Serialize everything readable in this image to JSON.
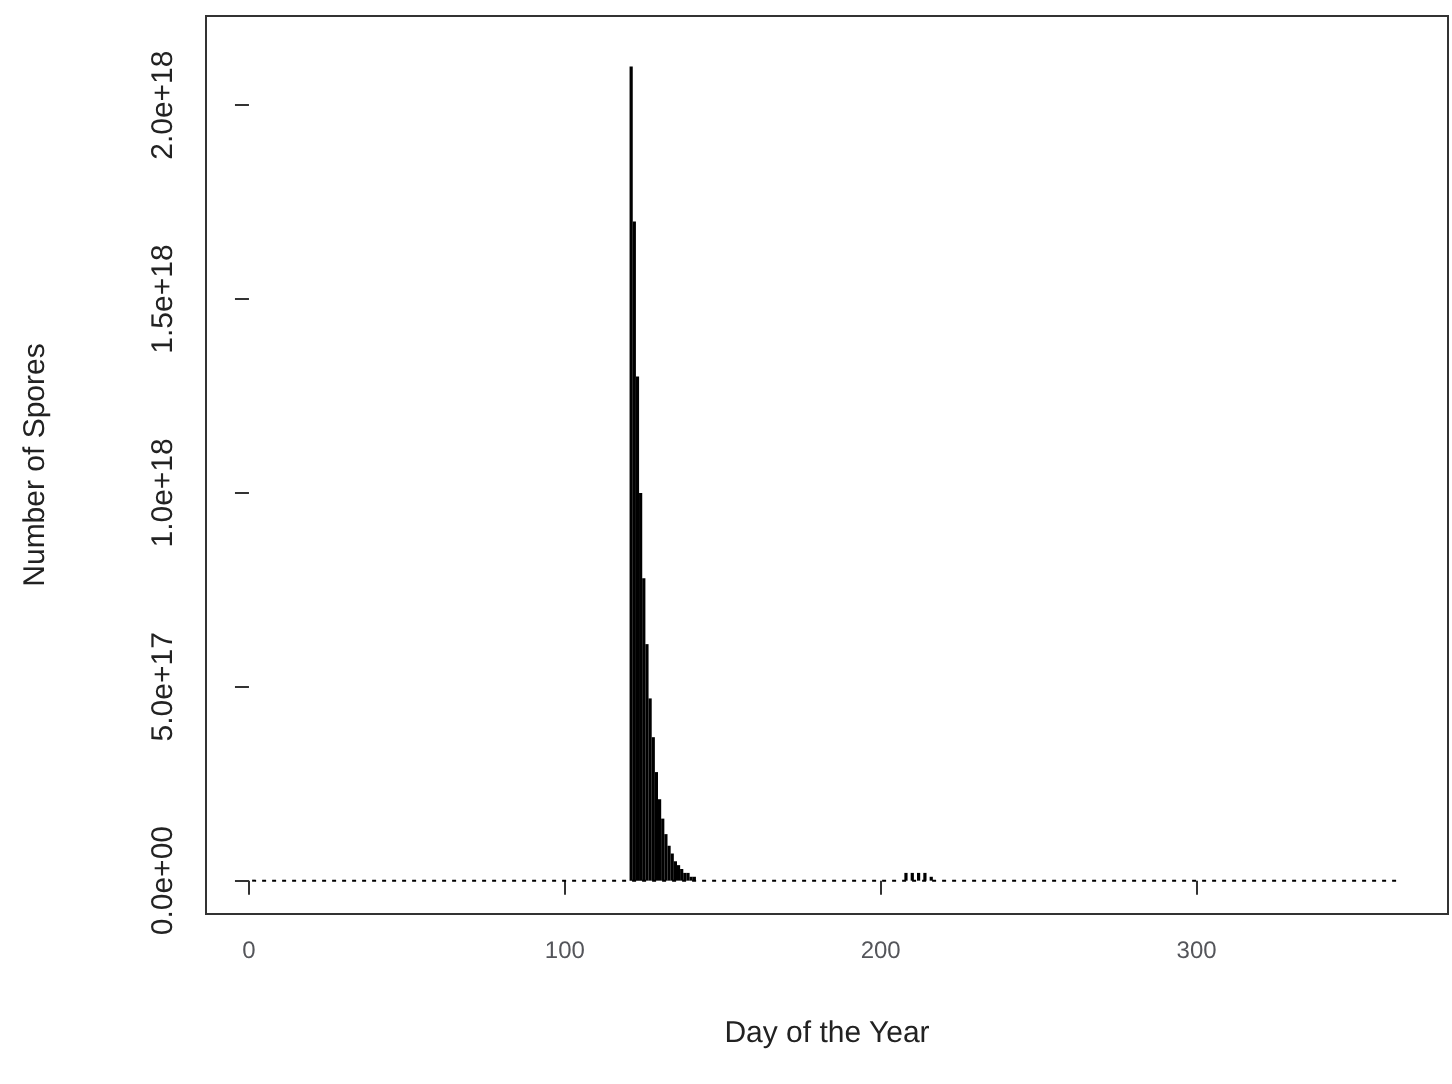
{
  "chart_data": {
    "type": "bar",
    "xlabel": "Day of the Year",
    "ylabel": "Number of Spores",
    "x": [
      1,
      120,
      121,
      122,
      123,
      124,
      125,
      126,
      127,
      128,
      129,
      130,
      131,
      132,
      133,
      134,
      135,
      136,
      137,
      138,
      139,
      140,
      141,
      206,
      208,
      210,
      212,
      214,
      216,
      218,
      365
    ],
    "values": [
      0,
      0,
      2.1e+18,
      1.7e+18,
      1.3e+18,
      1e+18,
      7.8e+17,
      6.1e+17,
      4.7e+17,
      3.7e+17,
      2.8e+17,
      2.1e+17,
      1.6e+17,
      1.2e+17,
      9e+16,
      7e+16,
      5e+16,
      4e+16,
      3e+16,
      2e+16,
      2e+16,
      1e+16,
      1e+16,
      0,
      2e+16,
      2e+16,
      2e+16,
      2e+16,
      1e+16,
      0,
      0
    ],
    "color": "#000000",
    "xlim": [
      -13.6,
      379.6
    ],
    "xticks": [
      0,
      100,
      200,
      300
    ],
    "ylim": [
      -8.6e+16,
      2.23e+18
    ],
    "yticks": [
      {
        "value": 0,
        "label": "0.0e+00"
      },
      {
        "value": 5e+17,
        "label": "5.0e+17"
      },
      {
        "value": 1e+18,
        "label": "1.0e+18"
      },
      {
        "value": 1.5e+18,
        "label": "1.5e+18"
      },
      {
        "value": 2e+18,
        "label": "2.0e+18"
      }
    ],
    "ref_lines": [
      {
        "axis": "y",
        "value": 0,
        "color": "#000000",
        "line_style": "dotted"
      }
    ],
    "grid": false
  }
}
